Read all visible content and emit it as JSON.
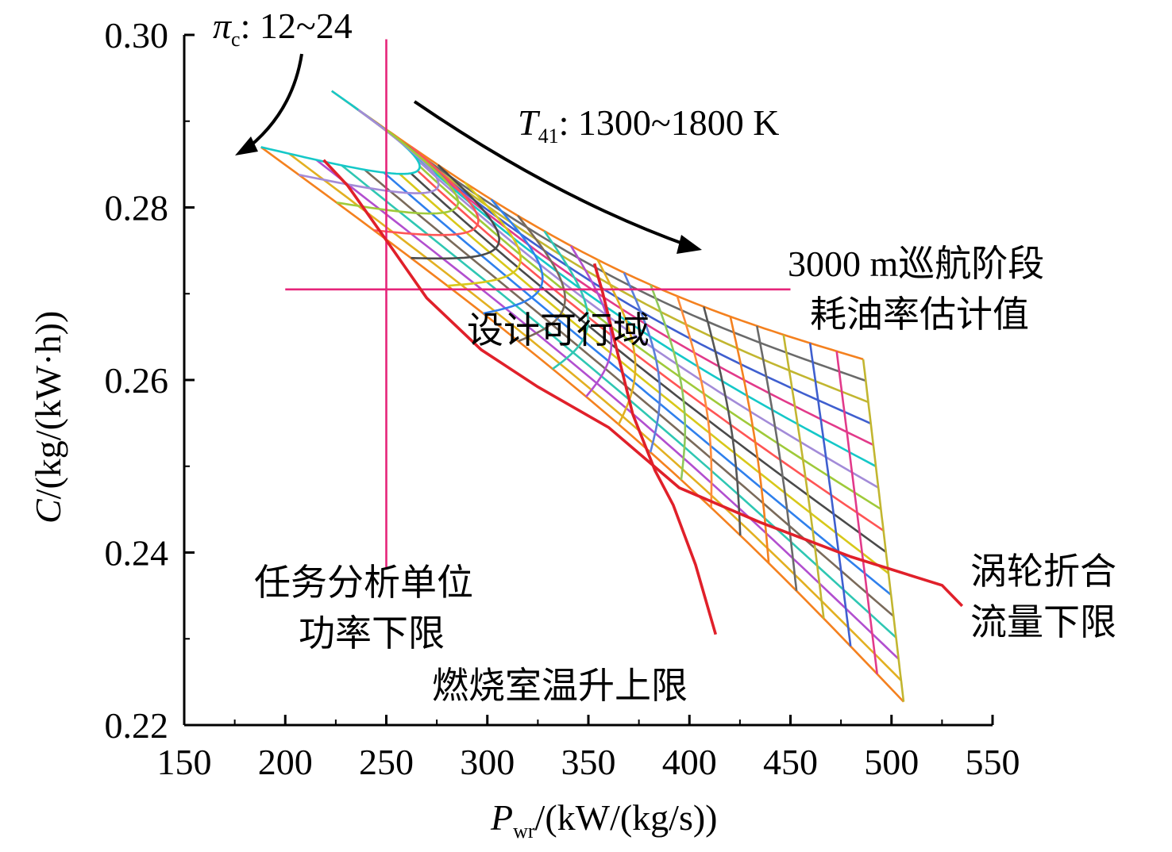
{
  "chart_data": {
    "type": "line",
    "xlabel_main": "P",
    "xlabel_sub": "wr",
    "xlabel_unit": "/(kW/(kg/s))",
    "ylabel_main": "C",
    "ylabel_unit": "/(kg/(kW·h))",
    "xlim": [
      150,
      550
    ],
    "ylim": [
      0.22,
      0.3
    ],
    "x_ticks": [
      "150",
      "200",
      "250",
      "300",
      "350",
      "400",
      "450",
      "500",
      "550"
    ],
    "y_ticks": [
      "0.22",
      "0.24",
      "0.26",
      "0.28",
      "0.30"
    ],
    "pressure_ratio_range": [
      12,
      24
    ],
    "turbine_temperature_range_K": [
      1300,
      1800
    ],
    "grid_corners": {
      "high_temp_low_pr": [
        223,
        0.2935
      ],
      "high_temp_high_pr": [
        486,
        0.2624
      ],
      "low_temp_low_pr": [
        188,
        0.287
      ],
      "low_temp_high_pr": [
        506,
        0.2227
      ]
    },
    "constraints": [
      {
        "label_key": "cruise_sfc",
        "kind": "horizontal",
        "y": 0.2705,
        "x_range": [
          200,
          450
        ]
      },
      {
        "label_key": "min_power",
        "kind": "vertical",
        "x": 250,
        "y_range": [
          0.2383,
          0.2995
        ]
      },
      {
        "label_key": "combustor_limit",
        "points": [
          [
            353,
            0.2735
          ],
          [
            357,
            0.2702
          ],
          [
            363,
            0.2645
          ],
          [
            372,
            0.256
          ],
          [
            383,
            0.2495
          ],
          [
            392,
            0.2455
          ],
          [
            403,
            0.2386
          ],
          [
            413,
            0.2305
          ]
        ]
      },
      {
        "label_key": "turbine_flow_limit",
        "points": [
          [
            219,
            0.2855
          ],
          [
            231,
            0.2825
          ],
          [
            247,
            0.2772
          ],
          [
            270,
            0.2695
          ],
          [
            297,
            0.2635
          ],
          [
            325,
            0.2592
          ],
          [
            360,
            0.2545
          ],
          [
            395,
            0.2475
          ],
          [
            435,
            0.2435
          ],
          [
            480,
            0.2395
          ],
          [
            525,
            0.2362
          ],
          [
            535,
            0.2338
          ]
        ]
      }
    ],
    "annotations": {
      "pi_symbol": "π",
      "pi_sub": "c",
      "pi_range": ": 12~24",
      "t_symbol": "T",
      "t_sub": "41",
      "t_range": ": 1300~1800 K",
      "cruise_sfc": [
        "3000 m巡航阶段",
        "耗油率估计值"
      ],
      "feasible_region": "设计可行域",
      "min_power": [
        "任务分析单位",
        "功率下限"
      ],
      "combustor_limit": "燃烧室温升上限",
      "turbine_flow_limit": [
        "涡轮折合",
        "流量下限"
      ]
    }
  }
}
